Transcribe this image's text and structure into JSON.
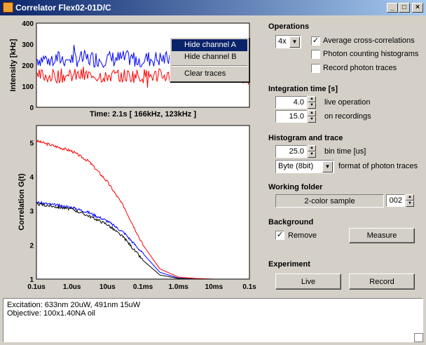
{
  "window": {
    "title": "Correlator Flex02-01D/C",
    "minimize": "_",
    "maximize": "□",
    "close": "×"
  },
  "intensity_plot": {
    "ylabel": "Intensity [kHz]",
    "yticks": [
      "400",
      "300",
      "200",
      "100",
      "0"
    ],
    "caption": "Time: 2.1s [ 166kHz, 123kHz ]",
    "chart_data": {
      "type": "line",
      "ylabel": "Intensity [kHz]",
      "ylim": [
        0,
        400
      ],
      "series": [
        {
          "color": "#0000ff",
          "mean": 230,
          "spread": 40
        },
        {
          "color": "#ff0000",
          "mean": 150,
          "spread": 35
        }
      ]
    }
  },
  "correlation_plot": {
    "ylabel": "Correlation G(t)",
    "yticks": [
      "5",
      "4",
      "3",
      "2",
      "1"
    ],
    "xticks": [
      "0.1us",
      "1.0us",
      "10us",
      "0.1ms",
      "1.0ms",
      "10ms",
      "0.1s"
    ],
    "chart_data": {
      "type": "line",
      "xscale": "log",
      "ylim": [
        1,
        5.5
      ],
      "series": [
        {
          "color": "#ff0000",
          "x": [
            1e-07,
            1e-06,
            3e-06,
            1e-05,
            3e-05,
            0.0001,
            0.0003,
            0.001,
            0.003,
            0.01,
            0.1
          ],
          "y": [
            5.05,
            4.75,
            4.45,
            3.85,
            3.1,
            2.0,
            1.3,
            1.06,
            1.02,
            1.0,
            1.0
          ]
        },
        {
          "color": "#0000ff",
          "x": [
            1e-07,
            1e-06,
            3e-06,
            1e-05,
            3e-05,
            0.0001,
            0.0003,
            0.001,
            0.003,
            0.01,
            0.1
          ],
          "y": [
            3.25,
            3.1,
            2.95,
            2.7,
            2.35,
            1.75,
            1.2,
            1.03,
            1.0,
            1.0,
            1.0
          ]
        },
        {
          "color": "#000000",
          "x": [
            1e-07,
            1e-06,
            3e-06,
            1e-05,
            3e-05,
            0.0001,
            0.0003,
            0.001,
            0.003,
            0.01,
            0.1
          ],
          "y": [
            3.2,
            3.05,
            2.85,
            2.6,
            2.2,
            1.55,
            1.12,
            1.02,
            1.0,
            1.0,
            1.0
          ]
        }
      ]
    }
  },
  "context_menu": {
    "items": [
      "Hide channel A",
      "Hide channel B",
      "Clear traces"
    ],
    "selected": "Hide channel A"
  },
  "operations": {
    "header": "Operations",
    "mode_value": "4x",
    "avg_cross_label": "Average cross-correlations",
    "avg_cross_checked": "✓",
    "photon_hist_label": "Photon counting histograms",
    "record_traces_label": "Record photon traces"
  },
  "integration": {
    "header": "Integration time [s]",
    "live_value": "4.0",
    "live_label": "live operation",
    "rec_value": "15.0",
    "rec_label": "on recordings"
  },
  "histogram": {
    "header": "Histogram and trace",
    "bin_value": "25.0",
    "bin_label": "bin time [us]",
    "format_value": "Byte (8bit)",
    "format_label": "format of photon traces"
  },
  "folder": {
    "header": "Working folder",
    "name": "2-color sample",
    "index": "002"
  },
  "background": {
    "header": "Background",
    "remove_label": "Remove",
    "remove_checked": "✓",
    "measure_label": "Measure"
  },
  "experiment": {
    "header": "Experiment",
    "live_label": "Live",
    "record_label": "Record"
  },
  "notes": {
    "line1": "Excitation: 633nm 20uW, 491nm 15uW",
    "line2": "Objective: 100x1.40NA oil"
  }
}
